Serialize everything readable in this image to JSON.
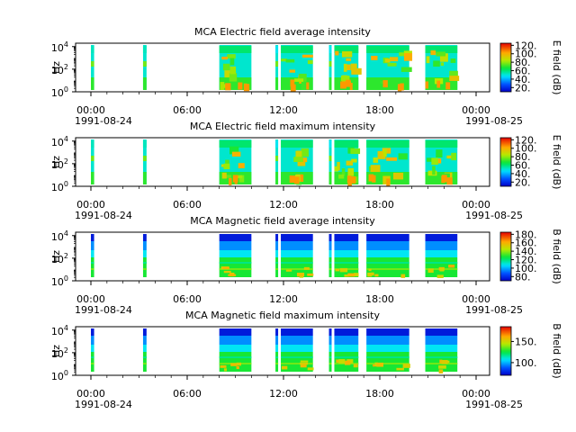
{
  "chart_data": [
    {
      "type": "heatmap",
      "title": "MCA  Electric field average intensity",
      "ylabel": "Hz",
      "yaxis": {
        "scale": "log",
        "ticks": [
          {
            "base": "10",
            "exp": "0"
          },
          {
            "base": "10",
            "exp": "2"
          },
          {
            "base": "10",
            "exp": "4"
          }
        ],
        "range_exp": [
          0,
          4.3
        ]
      },
      "colorbar": {
        "label": "E field (dB)",
        "min": 10,
        "max": 125,
        "ticks": [
          "20.",
          "40.",
          "60.",
          "80.",
          "100.",
          "120."
        ],
        "colormap": "rainbow",
        "scale_values": [
          20,
          40,
          60,
          80,
          100,
          120
        ]
      },
      "xaxis": {
        "range": [
          "1991-08-23T22:00",
          "1991-08-25T00:30"
        ],
        "major_ticks": [
          "00:00",
          "06:00",
          "12:00",
          "18:00",
          "00:00"
        ],
        "date_labels": [
          "1991-08-24",
          "1991-08-25"
        ]
      },
      "data_intervals": [
        {
          "start": "1991-08-24T00:00",
          "end": "1991-08-24T00:12",
          "level": "mid-high"
        },
        {
          "start": "1991-08-24T03:15",
          "end": "1991-08-24T03:28",
          "level": "mid-high"
        },
        {
          "start": "1991-08-24T08:00",
          "end": "1991-08-24T10:00",
          "level": "high"
        },
        {
          "start": "1991-08-24T11:30",
          "end": "1991-08-24T11:40",
          "level": "mid"
        },
        {
          "start": "1991-08-24T11:50",
          "end": "1991-08-24T13:50",
          "level": "high"
        },
        {
          "start": "1991-08-24T14:50",
          "end": "1991-08-24T15:00",
          "level": "mid"
        },
        {
          "start": "1991-08-24T15:10",
          "end": "1991-08-24T16:40",
          "level": "high"
        },
        {
          "start": "1991-08-24T17:10",
          "end": "1991-08-24T19:50",
          "level": "high"
        },
        {
          "start": "1991-08-24T20:50",
          "end": "1991-08-24T22:50",
          "level": "high"
        }
      ]
    },
    {
      "type": "heatmap",
      "title": "MCA  Electric field maximum intensity",
      "ylabel": "Hz",
      "yaxis": {
        "scale": "log",
        "ticks": [
          {
            "base": "10",
            "exp": "0"
          },
          {
            "base": "10",
            "exp": "2"
          },
          {
            "base": "10",
            "exp": "4"
          }
        ],
        "range_exp": [
          0,
          4.3
        ]
      },
      "colorbar": {
        "label": "E field (dB)",
        "min": 10,
        "max": 125,
        "ticks": [
          "20.",
          "40.",
          "60.",
          "80.",
          "100.",
          "120."
        ],
        "colormap": "rainbow",
        "scale_values": [
          20,
          40,
          60,
          80,
          100,
          120
        ]
      },
      "xaxis": {
        "range": [
          "1991-08-23T22:00",
          "1991-08-25T00:30"
        ],
        "major_ticks": [
          "00:00",
          "06:00",
          "12:00",
          "18:00",
          "00:00"
        ],
        "date_labels": [
          "1991-08-24",
          "1991-08-25"
        ]
      },
      "data_intervals": [
        {
          "start": "1991-08-24T00:00",
          "end": "1991-08-24T00:12",
          "level": "mid-high"
        },
        {
          "start": "1991-08-24T03:15",
          "end": "1991-08-24T03:28",
          "level": "mid-high"
        },
        {
          "start": "1991-08-24T08:00",
          "end": "1991-08-24T10:00",
          "level": "high"
        },
        {
          "start": "1991-08-24T11:30",
          "end": "1991-08-24T11:40",
          "level": "mid"
        },
        {
          "start": "1991-08-24T11:50",
          "end": "1991-08-24T13:50",
          "level": "high"
        },
        {
          "start": "1991-08-24T14:50",
          "end": "1991-08-24T15:00",
          "level": "mid"
        },
        {
          "start": "1991-08-24T15:10",
          "end": "1991-08-24T16:40",
          "level": "high"
        },
        {
          "start": "1991-08-24T17:10",
          "end": "1991-08-24T19:50",
          "level": "high"
        },
        {
          "start": "1991-08-24T20:50",
          "end": "1991-08-24T22:50",
          "level": "high"
        }
      ]
    },
    {
      "type": "heatmap",
      "title": "MCA  Magnetic field average intensity",
      "ylabel": "Hz",
      "yaxis": {
        "scale": "log",
        "ticks": [
          {
            "base": "10",
            "exp": "0"
          },
          {
            "base": "10",
            "exp": "2"
          },
          {
            "base": "10",
            "exp": "4"
          }
        ],
        "range_exp": [
          0,
          4.3
        ]
      },
      "colorbar": {
        "label": "B field (dB)",
        "min": 70,
        "max": 185,
        "ticks": [
          "80.",
          "100.",
          "120.",
          "140.",
          "160.",
          "180."
        ],
        "colormap": "rainbow",
        "scale_values": [
          80,
          100,
          120,
          140,
          160,
          180
        ]
      },
      "xaxis": {
        "range": [
          "1991-08-23T22:00",
          "1991-08-25T00:30"
        ],
        "major_ticks": [
          "00:00",
          "06:00",
          "12:00",
          "18:00",
          "00:00"
        ],
        "date_labels": [
          "1991-08-24",
          "1991-08-25"
        ]
      },
      "data_intervals": [
        {
          "start": "1991-08-24T00:00",
          "end": "1991-08-24T00:12",
          "level": "low"
        },
        {
          "start": "1991-08-24T03:15",
          "end": "1991-08-24T03:28",
          "level": "low"
        },
        {
          "start": "1991-08-24T08:00",
          "end": "1991-08-24T10:00",
          "level": "low"
        },
        {
          "start": "1991-08-24T11:30",
          "end": "1991-08-24T11:40",
          "level": "low"
        },
        {
          "start": "1991-08-24T11:50",
          "end": "1991-08-24T13:50",
          "level": "low"
        },
        {
          "start": "1991-08-24T14:50",
          "end": "1991-08-24T15:00",
          "level": "low"
        },
        {
          "start": "1991-08-24T15:10",
          "end": "1991-08-24T16:40",
          "level": "low"
        },
        {
          "start": "1991-08-24T17:10",
          "end": "1991-08-24T19:50",
          "level": "low"
        },
        {
          "start": "1991-08-24T20:50",
          "end": "1991-08-24T22:50",
          "level": "low"
        }
      ]
    },
    {
      "type": "heatmap",
      "title": "MCA  Magnetic field maximum intensity",
      "ylabel": "Hz",
      "yaxis": {
        "scale": "log",
        "ticks": [
          {
            "base": "10",
            "exp": "0"
          },
          {
            "base": "10",
            "exp": "2"
          },
          {
            "base": "10",
            "exp": "4"
          }
        ],
        "range_exp": [
          0,
          4.3
        ]
      },
      "colorbar": {
        "label": "B field (dB)",
        "min": 70,
        "max": 185,
        "ticks": [
          "100.",
          "150."
        ],
        "colormap": "rainbow",
        "scale_values": [
          100,
          150
        ]
      },
      "xaxis": {
        "range": [
          "1991-08-23T22:00",
          "1991-08-25T00:30"
        ],
        "major_ticks": [
          "00:00",
          "06:00",
          "12:00",
          "18:00",
          "00:00"
        ],
        "date_labels": [
          "1991-08-24",
          "1991-08-25"
        ]
      },
      "data_intervals": [
        {
          "start": "1991-08-24T00:00",
          "end": "1991-08-24T00:12",
          "level": "low"
        },
        {
          "start": "1991-08-24T03:15",
          "end": "1991-08-24T03:28",
          "level": "low"
        },
        {
          "start": "1991-08-24T08:00",
          "end": "1991-08-24T10:00",
          "level": "low"
        },
        {
          "start": "1991-08-24T11:30",
          "end": "1991-08-24T11:40",
          "level": "low"
        },
        {
          "start": "1991-08-24T11:50",
          "end": "1991-08-24T13:50",
          "level": "low"
        },
        {
          "start": "1991-08-24T14:50",
          "end": "1991-08-24T15:00",
          "level": "low"
        },
        {
          "start": "1991-08-24T15:10",
          "end": "1991-08-24T16:40",
          "level": "low"
        },
        {
          "start": "1991-08-24T17:10",
          "end": "1991-08-24T19:50",
          "level": "low"
        },
        {
          "start": "1991-08-24T20:50",
          "end": "1991-08-24T22:50",
          "level": "low"
        }
      ]
    }
  ]
}
